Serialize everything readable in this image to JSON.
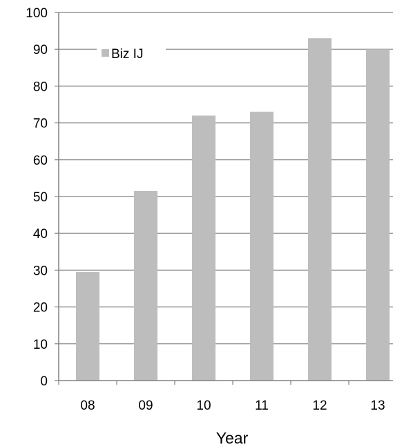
{
  "chart_data": {
    "type": "bar",
    "categories": [
      "08",
      "09",
      "10",
      "11",
      "12",
      "13"
    ],
    "series": [
      {
        "name": "Biz IJ",
        "values": [
          29.5,
          51.5,
          72,
          73,
          93,
          90
        ]
      }
    ],
    "xlabel": "Year",
    "ylabel": "",
    "ylim": [
      0,
      100
    ],
    "yticks": [
      "0",
      "10",
      "20",
      "30",
      "40",
      "50",
      "60",
      "70",
      "80",
      "90",
      "100"
    ],
    "grid": true,
    "legend_position": "top-left",
    "colors": {
      "bar": "#bdbdbd",
      "grid": "#808080",
      "axis": "#808080"
    }
  }
}
